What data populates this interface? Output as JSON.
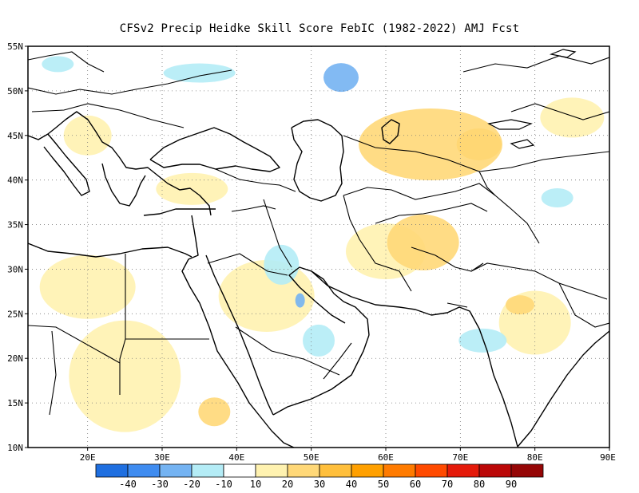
{
  "title": "CFSv2 Precip Heidke Skill Score FebIC (1982-2022) AMJ Fcst",
  "map": {
    "lon_range": [
      12,
      90
    ],
    "lat_range": [
      10,
      55
    ],
    "lon_ticks": [
      "20E",
      "30E",
      "40E",
      "50E",
      "60E",
      "70E",
      "80E",
      "90E"
    ],
    "lat_ticks": [
      "55N",
      "50N",
      "45N",
      "40N",
      "35N",
      "30N",
      "25N",
      "20N",
      "15N",
      "10N"
    ],
    "grid": "dotted"
  },
  "colorbar": {
    "labels": [
      "-40",
      "-30",
      "-20",
      "-10",
      "10",
      "20",
      "30",
      "40",
      "50",
      "60",
      "70",
      "80",
      "90"
    ],
    "colors": [
      "#1f6fe0",
      "#3f8cf0",
      "#74b3f2",
      "#b4ecf6",
      "#ffffff",
      "#fff2b0",
      "#ffd878",
      "#ffbf3c",
      "#ffa000",
      "#ff7b00",
      "#ff4a00",
      "#e41a0a",
      "#bb0808",
      "#950606"
    ]
  },
  "patches": [
    {
      "name": "kazakh-orange-core",
      "lon": 72.5,
      "lat": 44,
      "rx": 28,
      "ry": 20,
      "color": "#ffbf3c"
    },
    {
      "name": "kazakh-yellow",
      "lon": 66,
      "lat": 44,
      "rx": 90,
      "ry": 45,
      "color": "#ffd878"
    },
    {
      "name": "siberia-blue",
      "lon": 54,
      "lat": 51.5,
      "rx": 22,
      "ry": 18,
      "color": "#74b3f2"
    },
    {
      "name": "europe-light-blue",
      "lon": 35,
      "lat": 52,
      "rx": 45,
      "ry": 12,
      "color": "#b4ecf6"
    },
    {
      "name": "arabia-yellow",
      "lon": 44,
      "lat": 27,
      "rx": 60,
      "ry": 45,
      "color": "#fff2b0"
    },
    {
      "name": "iran-yellow",
      "lon": 60,
      "lat": 32,
      "rx": 50,
      "ry": 35,
      "color": "#fff2b0"
    },
    {
      "name": "afghan-yellow",
      "lon": 65,
      "lat": 33,
      "rx": 45,
      "ry": 35,
      "color": "#ffd878"
    },
    {
      "name": "iraq-blue",
      "lon": 46,
      "lat": 30.5,
      "rx": 22,
      "ry": 25,
      "color": "#b4ecf6"
    },
    {
      "name": "iraq-blue-core",
      "lon": 48.5,
      "lat": 26.5,
      "rx": 6,
      "ry": 9,
      "color": "#74b3f2"
    },
    {
      "name": "libya-yellow",
      "lon": 20,
      "lat": 28,
      "rx": 60,
      "ry": 40,
      "color": "#fff2b0"
    },
    {
      "name": "sudan-yellow",
      "lon": 25,
      "lat": 18,
      "rx": 70,
      "ry": 70,
      "color": "#fff2b0"
    },
    {
      "name": "ethiopia-orange",
      "lon": 37,
      "lat": 14,
      "rx": 20,
      "ry": 18,
      "color": "#ffd878"
    },
    {
      "name": "india-yellow",
      "lon": 80,
      "lat": 24,
      "rx": 45,
      "ry": 40,
      "color": "#fff2b0"
    },
    {
      "name": "india-blue",
      "lon": 73,
      "lat": 22,
      "rx": 30,
      "ry": 15,
      "color": "#b4ecf6"
    },
    {
      "name": "arabia-blue",
      "lon": 51,
      "lat": 22,
      "rx": 20,
      "ry": 20,
      "color": "#b4ecf6"
    },
    {
      "name": "turkey-yellow",
      "lon": 34,
      "lat": 39,
      "rx": 45,
      "ry": 20,
      "color": "#fff2b0"
    },
    {
      "name": "mongolia-yellow",
      "lon": 85,
      "lat": 47,
      "rx": 40,
      "ry": 25,
      "color": "#fff2b0"
    },
    {
      "name": "balkans-yellow",
      "lon": 20,
      "lat": 45,
      "rx": 30,
      "ry": 25,
      "color": "#fff2b0"
    },
    {
      "name": "eu-blue-west",
      "lon": 16,
      "lat": 53,
      "rx": 20,
      "ry": 10,
      "color": "#b4ecf6"
    },
    {
      "name": "china-blue",
      "lon": 83,
      "lat": 38,
      "rx": 20,
      "ry": 12,
      "color": "#b4ecf6"
    },
    {
      "name": "india-orange",
      "lon": 78,
      "lat": 26,
      "rx": 18,
      "ry": 12,
      "color": "#ffd878"
    }
  ]
}
